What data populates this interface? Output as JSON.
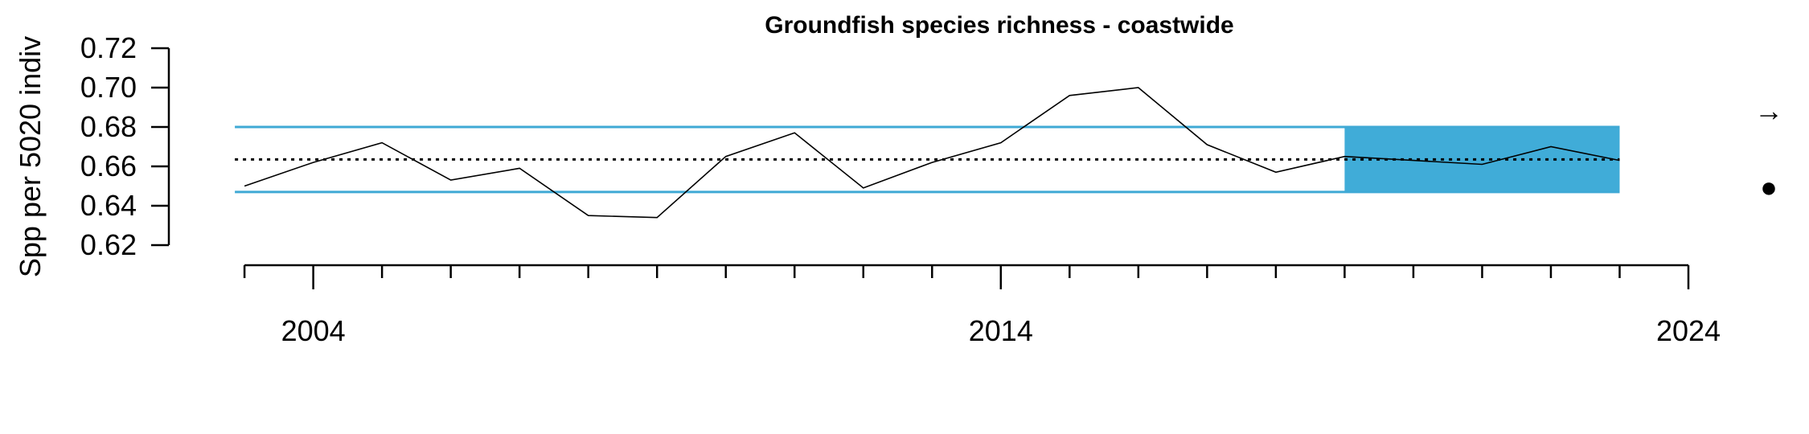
{
  "chart_data": {
    "type": "line",
    "title": "Groundfish species richness - coastwide",
    "xlabel": "",
    "ylabel": "Spp per 5020 indiv",
    "xlim": [
      2002.8,
      2024
    ],
    "ylim": [
      0.62,
      0.72
    ],
    "yticks": [
      0.62,
      0.64,
      0.66,
      0.68,
      0.7,
      0.72
    ],
    "ytick_labels": [
      "0.62",
      "0.64",
      "0.66",
      "0.68",
      "0.70",
      "0.72"
    ],
    "xticks_major": [
      2004,
      2014,
      2024
    ],
    "xtick_labels": [
      "2004",
      "2014",
      "2024"
    ],
    "xticks_minor": [
      2003,
      2005,
      2006,
      2007,
      2008,
      2009,
      2010,
      2011,
      2012,
      2013,
      2015,
      2016,
      2017,
      2018,
      2019,
      2020,
      2021,
      2022,
      2023
    ],
    "series": [
      {
        "x": [
          2003,
          2004,
          2005,
          2006,
          2007,
          2008,
          2009,
          2010,
          2011,
          2012,
          2013,
          2014,
          2015,
          2016,
          2017,
          2018,
          2019,
          2020,
          2021,
          2022,
          2023
        ],
        "values": [
          0.65,
          0.662,
          0.672,
          0.653,
          0.659,
          0.635,
          0.634,
          0.665,
          0.677,
          0.649,
          0.662,
          0.672,
          0.696,
          0.7,
          0.671,
          0.657,
          0.665,
          0.663,
          0.661,
          0.67,
          0.663
        ]
      }
    ],
    "mean": 0.6635,
    "upper_band": 0.68,
    "lower_band": 0.647,
    "recent_window": [
      2019,
      2023
    ],
    "trend_symbol": "→",
    "status_symbol": "●",
    "grid": false,
    "legend": "none",
    "colors": {
      "line": "#000000",
      "band_lines": "#3fa9d5",
      "recent_fill": "#40acd8",
      "mean_line": "#000000"
    }
  }
}
